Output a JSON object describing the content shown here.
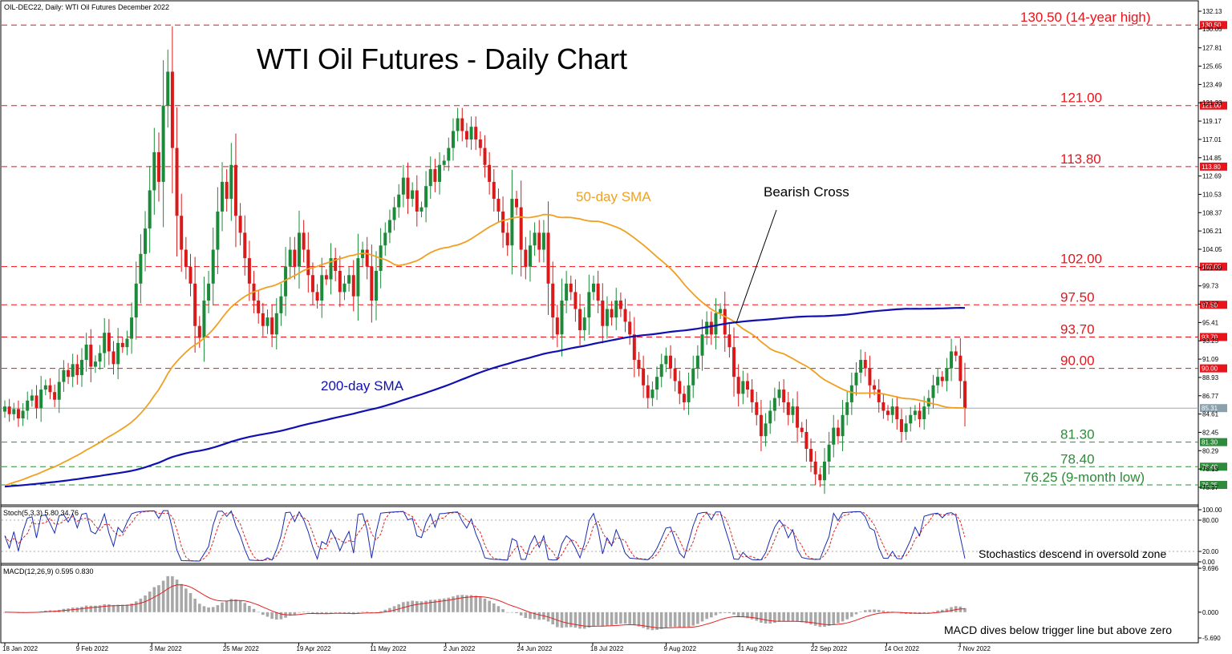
{
  "header": {
    "symbol_line": "OIL-DEC22, Daily:  WTI Oil Futures December 2022"
  },
  "chart_data": {
    "type": "candlestick",
    "title": "WTI Oil Futures - Daily Chart",
    "price_axis_ticks": [
      "132.13",
      "130.05",
      "127.81",
      "125.65",
      "123.49",
      "121.33",
      "119.17",
      "117.01",
      "114.85",
      "112.69",
      "110.53",
      "108.37",
      "106.21",
      "104.05",
      "101.89",
      "99.73",
      "97.57",
      "95.41",
      "93.25",
      "91.09",
      "88.93",
      "86.77",
      "84.61",
      "82.45",
      "80.29",
      "78.13",
      "75.97"
    ],
    "x_tick_labels": [
      "18 Jan 2022",
      "9 Feb 2022",
      "3 Mar 2022",
      "25 Mar 2022",
      "19 Apr 2022",
      "11 May 2022",
      "2 Jun 2022",
      "24 Jun 2022",
      "18 Jul 2022",
      "9 Aug 2022",
      "31 Aug 2022",
      "22 Sep 2022",
      "14 Oct 2022",
      "7 Nov 2022"
    ],
    "levels": [
      {
        "value": 130.5,
        "label": "130.50 (14-year high)",
        "tag": "130.50",
        "color": "#e8141c"
      },
      {
        "value": 121.0,
        "label": "121.00",
        "tag": "121.00",
        "color": "#e8141c"
      },
      {
        "value": 113.8,
        "label": "113.80",
        "tag": "113.80",
        "color": "#e8141c"
      },
      {
        "value": 102.0,
        "label": "102.00",
        "tag": "102.00",
        "color": "#e8141c"
      },
      {
        "value": 97.5,
        "label": "97.50",
        "tag": "97.50",
        "color": "#e8141c"
      },
      {
        "value": 93.7,
        "label": "93.70",
        "tag": "93.70",
        "color": "#e8141c"
      },
      {
        "value": 90.0,
        "label": "90.00",
        "tag": "90.00",
        "color": "#e8141c"
      },
      {
        "value": 81.3,
        "label": "81.30",
        "tag": "81.30",
        "color": "#2e8b3a"
      },
      {
        "value": 78.4,
        "label": "78.40",
        "tag": "78.40",
        "color": "#2e8b3a"
      },
      {
        "value": 76.25,
        "label": "76.25 (9-month low)",
        "tag": "76.25",
        "color": "#2e8b3a"
      }
    ],
    "current_price": "85.31",
    "closes": [
      85.5,
      84.6,
      85.2,
      84.1,
      85.0,
      86.2,
      86.8,
      85.3,
      87.5,
      88.0,
      87.2,
      86.3,
      88.4,
      89.8,
      89.0,
      90.5,
      89.2,
      91.0,
      92.8,
      90.2,
      90.8,
      91.8,
      94.2,
      92.0,
      90.5,
      93.0,
      92.5,
      93.5,
      96.0,
      100.0,
      103.5,
      106.5,
      111.0,
      115.5,
      112.0,
      121.0,
      125.0,
      116.0,
      108.0,
      104.0,
      102.0,
      100.0,
      95.0,
      93.6,
      98.0,
      100.0,
      104.0,
      108.5,
      112.0,
      110.0,
      114.0,
      108.0,
      106.0,
      103.0,
      100.0,
      98.0,
      96.5,
      95.0,
      96.0,
      94.0,
      96.5,
      98.5,
      102.0,
      104.0,
      102.0,
      106.0,
      104.0,
      101.0,
      99.0,
      98.0,
      101.0,
      100.5,
      103.0,
      101.5,
      99.0,
      100.0,
      101.0,
      98.5,
      103.0,
      104.0,
      102.0,
      98.0,
      101.5,
      104.5,
      106.0,
      107.5,
      109.0,
      110.5,
      112.5,
      110.0,
      111.0,
      108.5,
      109.0,
      111.5,
      113.5,
      112.0,
      114.0,
      114.5,
      116.0,
      118.0,
      119.5,
      118.0,
      117.0,
      118.5,
      117.0,
      116.0,
      114.0,
      112.0,
      110.0,
      108.5,
      106.0,
      104.5,
      110.0,
      109.0,
      104.0,
      102.0,
      104.5,
      106.0,
      104.0,
      106.0,
      100.0,
      96.0,
      94.0,
      98.0,
      100.0,
      99.0,
      97.0,
      94.5,
      96.0,
      99.0,
      100.0,
      98.0,
      95.0,
      97.0,
      96.0,
      98.0,
      97.0,
      95.5,
      94.0,
      91.0,
      90.0,
      88.0,
      86.5,
      87.5,
      89.0,
      90.5,
      91.5,
      90.0,
      88.5,
      87.0,
      86.0,
      88.0,
      90.0,
      91.5,
      94.0,
      95.5,
      94.0,
      96.5,
      97.0,
      94.0,
      92.5,
      89.0,
      87.0,
      88.5,
      87.5,
      86.0,
      84.5,
      82.0,
      83.5,
      85.0,
      86.5,
      87.5,
      86.0,
      84.5,
      85.5,
      83.0,
      82.5,
      80.5,
      79.0,
      77.5,
      76.8,
      79.0,
      81.0,
      83.0,
      82.0,
      84.5,
      86.0,
      88.0,
      89.5,
      91.0,
      90.0,
      88.0,
      87.5,
      86.0,
      85.0,
      84.5,
      85.5,
      84.0,
      82.5,
      83.5,
      84.5,
      85.0,
      84.0,
      85.5,
      86.5,
      88.0,
      89.0,
      88.5,
      90.0,
      92.0,
      91.5,
      88.5,
      85.3
    ],
    "series": [
      {
        "name": "50-day SMA",
        "color": "#f0a020"
      },
      {
        "name": "200-day SMA",
        "color": "#1010b0"
      }
    ],
    "annotations": [
      {
        "text": "50-day SMA",
        "color": "#f0a020"
      },
      {
        "text": "200-day SMA",
        "color": "#1010b0"
      },
      {
        "text": "Bearish Cross",
        "color": "#000000"
      }
    ]
  },
  "stoch": {
    "label": "Stoch(5,3,3) 5.80 34.76",
    "ticks": [
      "100.00",
      "80.00",
      "20.00",
      "0.00"
    ],
    "note": "Stochastics descend in oversold zone"
  },
  "macd": {
    "label": "MACD(12,26,9) 0.595 0.830",
    "ticks": [
      "9.696",
      "0.000",
      "-5.690"
    ],
    "note": "MACD dives below trigger line but above zero"
  }
}
